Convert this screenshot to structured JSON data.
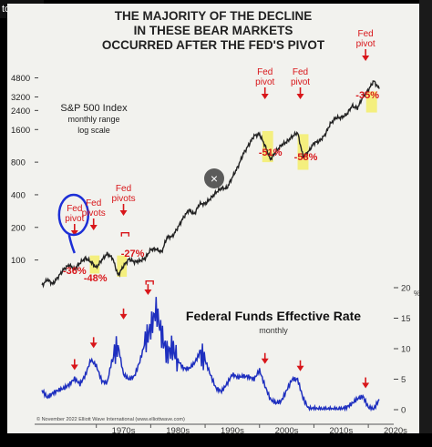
{
  "window": {
    "top_left_text": "tocks?",
    "close_glyph": "×"
  },
  "chart_data": [
    {
      "type": "line",
      "title_lines": [
        "THE MAJORITY OF THE DECLINE",
        "IN THESE BEAR MARKETS",
        "OCCURRED AFTER THE FED'S PIVOT"
      ],
      "series_label": [
        "S&P 500 Index",
        "monthly range",
        "log scale"
      ],
      "scale": "log",
      "y_ticks": [
        100,
        200,
        400,
        800,
        1600,
        2400,
        3200,
        4800
      ],
      "ylim": [
        70,
        6000
      ],
      "xlim": [
        1960,
        2024
      ],
      "x": [
        1960,
        1961,
        1962,
        1963,
        1964,
        1965,
        1966,
        1967,
        1968,
        1969,
        1970,
        1971,
        1972,
        1973,
        1974,
        1975,
        1976,
        1977,
        1978,
        1979,
        1980,
        1981,
        1982,
        1983,
        1984,
        1985,
        1986,
        1987,
        1988,
        1989,
        1990,
        1991,
        1992,
        1993,
        1994,
        1995,
        1996,
        1997,
        1998,
        1999,
        2000,
        2001,
        2002,
        2003,
        2004,
        2005,
        2006,
        2007,
        2008,
        2009,
        2010,
        2011,
        2012,
        2013,
        2014,
        2015,
        2016,
        2017,
        2018,
        2019,
        2020,
        2021,
        2022
      ],
      "y": [
        58,
        66,
        60,
        70,
        82,
        90,
        82,
        94,
        104,
        96,
        85,
        100,
        114,
        104,
        72,
        88,
        102,
        96,
        98,
        104,
        125,
        126,
        118,
        162,
        165,
        200,
        245,
        290,
        265,
        330,
        330,
        370,
        420,
        460,
        460,
        580,
        720,
        950,
        1150,
        1400,
        1450,
        1140,
        850,
        1000,
        1150,
        1230,
        1380,
        1500,
        900,
        1000,
        1200,
        1250,
        1420,
        1800,
        2050,
        2060,
        2200,
        2640,
        2520,
        3200,
        3700,
        4500,
        3800
      ],
      "annotations": [
        {
          "label": "Fed\npivot",
          "year": 1966,
          "decline": "-36%",
          "circled": true
        },
        {
          "label": "Fed\npivots",
          "year": 1969.5,
          "decline": "-48%",
          "circled": false
        },
        {
          "label": "Fed\npivots",
          "year": 1975,
          "decline": "-27%",
          "circled": false
        },
        {
          "label": "Fed\npivot",
          "year": 2001,
          "decline": "-51%",
          "circled": false
        },
        {
          "label": "Fed\npivot",
          "year": 2007.5,
          "decline": "-58%",
          "circled": false
        },
        {
          "label": "Fed\npivot",
          "year": 2019.5,
          "decline": "-35%",
          "circled": false
        }
      ]
    },
    {
      "type": "line",
      "title": "Federal Funds Effective Rate",
      "subtitle": "monthly",
      "y_ticks": [
        0,
        5,
        10,
        15,
        20
      ],
      "y_unit": "%",
      "ylim": [
        0,
        20
      ],
      "xlim": [
        1960,
        2024
      ],
      "x_ticks": [
        "1970s",
        "1980s",
        "1990s",
        "2000s",
        "2010s",
        "2020s"
      ],
      "x": [
        1960,
        1961,
        1962,
        1963,
        1964,
        1965,
        1966,
        1967,
        1968,
        1969,
        1970,
        1971,
        1972,
        1973,
        1974,
        1975,
        1976,
        1977,
        1978,
        1979,
        1980,
        1981,
        1982,
        1983,
        1984,
        1985,
        1986,
        1987,
        1988,
        1989,
        1990,
        1991,
        1992,
        1993,
        1994,
        1995,
        1996,
        1997,
        1998,
        1999,
        2000,
        2001,
        2002,
        2003,
        2004,
        2005,
        2006,
        2007,
        2008,
        2009,
        2010,
        2011,
        2012,
        2013,
        2014,
        2015,
        2016,
        2017,
        2018,
        2019,
        2020,
        2021,
        2022
      ],
      "y": [
        3.2,
        2.0,
        2.7,
        3.2,
        3.5,
        4.1,
        5.1,
        4.2,
        5.7,
        8.2,
        7.2,
        4.7,
        4.4,
        8.7,
        10.5,
        5.8,
        5.0,
        5.5,
        7.9,
        11.2,
        13.4,
        16.4,
        12.3,
        9.1,
        10.2,
        8.1,
        6.8,
        6.7,
        7.6,
        9.2,
        8.1,
        5.7,
        3.5,
        3.0,
        4.2,
        5.8,
        5.3,
        5.5,
        5.4,
        5.0,
        6.5,
        3.9,
        1.7,
        1.1,
        1.4,
        3.2,
        5.0,
        5.0,
        1.9,
        0.2,
        0.2,
        0.1,
        0.1,
        0.1,
        0.1,
        0.1,
        0.4,
        1.0,
        1.8,
        2.2,
        0.4,
        0.1,
        1.7
      ],
      "pivot_marker_years": [
        1966,
        1969.5,
        1975,
        1979.5,
        2001,
        2007.5,
        2019.5
      ],
      "footer": "© November 2022 Elliott Wave International (www.elliottwave.com)"
    }
  ],
  "colors": {
    "line": "#1e2fbf",
    "annotation": "#d8161a",
    "highlight": "#f5ef6a",
    "circle": "#1d2fd6",
    "text": "#1a1a1a"
  }
}
